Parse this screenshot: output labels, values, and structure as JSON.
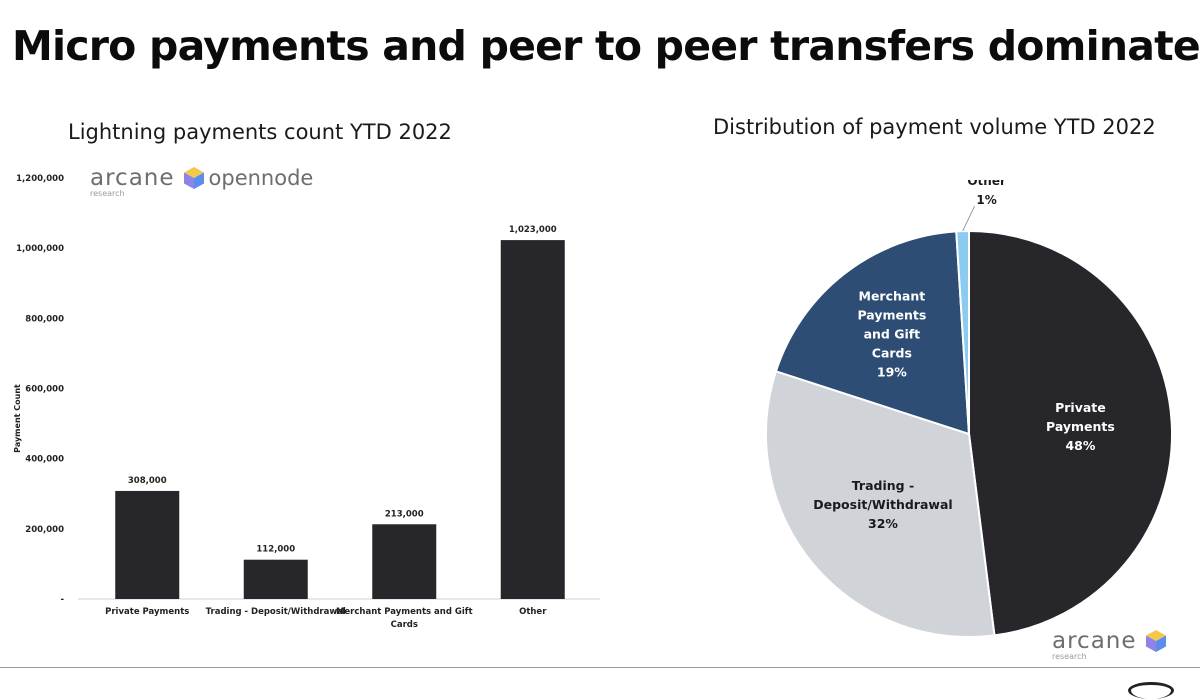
{
  "slide": {
    "title": "Micro payments and peer to peer transfers dominate"
  },
  "branding": {
    "arcane": "arcane",
    "arcane_sub": "research",
    "opennode": "opennode"
  },
  "chart_data": [
    {
      "type": "bar",
      "title": "Lightning payments count YTD 2022",
      "ylabel": "Payment Count",
      "xlabel": "",
      "categories": [
        "Private Payments",
        "Trading - Deposit/Withdrawal",
        "Merchant Payments and Gift Cards",
        "Other"
      ],
      "category_lines": [
        [
          "Private Payments"
        ],
        [
          "Trading - Deposit/Withdrawal"
        ],
        [
          "Merchant Payments and Gift",
          "Cards"
        ],
        [
          "Other"
        ]
      ],
      "values": [
        308000,
        112000,
        213000,
        1023000
      ],
      "data_labels": [
        "308,000",
        "112,000",
        "213,000",
        "1,023,000"
      ],
      "ylim": [
        0,
        1200000
      ],
      "yticks": [
        0,
        200000,
        400000,
        600000,
        800000,
        1000000,
        1200000
      ],
      "ytick_labels": [
        "-",
        "200,000",
        "400,000",
        "600,000",
        "800,000",
        "1,000,000",
        "1,200,000"
      ],
      "grid": false,
      "colors": {
        "bar": "#26262b",
        "axis": "#d0d0d0"
      }
    },
    {
      "type": "pie",
      "title": "Distribution of payment volume YTD 2022",
      "slices": [
        {
          "label_lines": [
            "Private",
            "Payments"
          ],
          "pct_label": "48%",
          "value": 48,
          "color": "#26262b",
          "text_color": "#ffffff"
        },
        {
          "label_lines": [
            "Trading -",
            "Deposit/Withdrawal"
          ],
          "pct_label": "32%",
          "value": 32,
          "color": "#d0d3d8",
          "text_color": "#1a1a1a"
        },
        {
          "label_lines": [
            "Merchant",
            "Payments",
            "and Gift",
            "Cards"
          ],
          "pct_label": "19%",
          "value": 19,
          "color": "#2d4d74",
          "text_color": "#ffffff"
        },
        {
          "label_lines": [
            "Other"
          ],
          "pct_label": "1%",
          "value": 1,
          "color": "#8ccbf1",
          "text_color": "#1a1a1a"
        }
      ]
    }
  ]
}
